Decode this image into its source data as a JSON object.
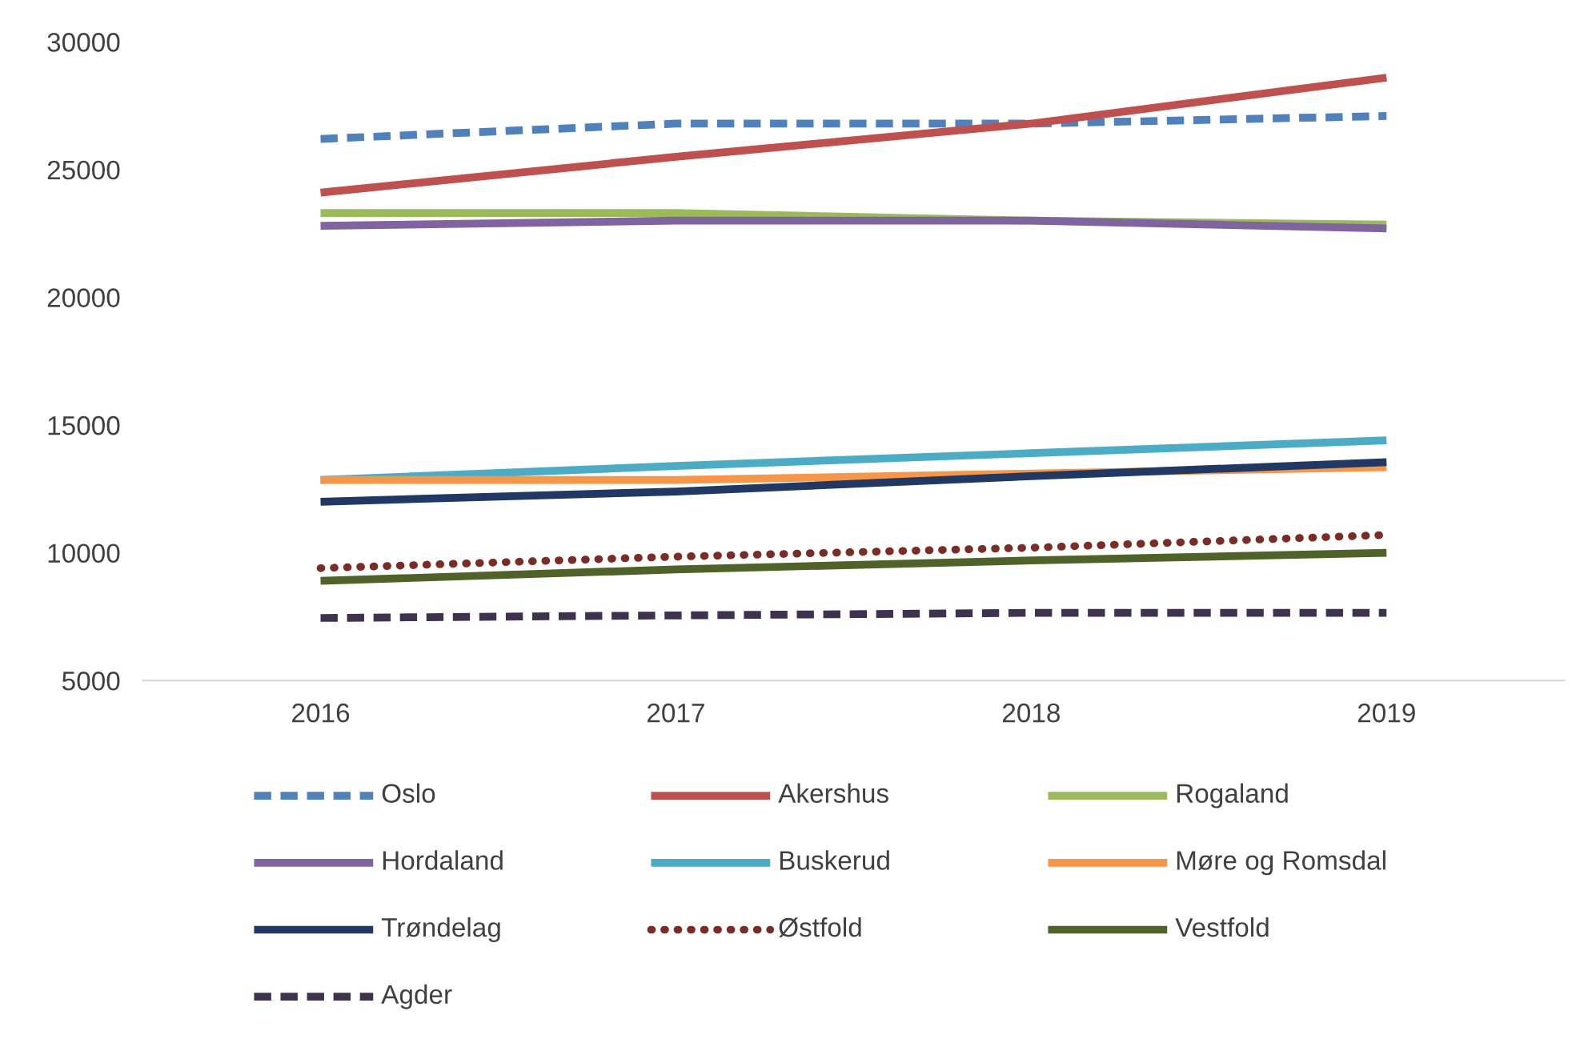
{
  "chart_data": {
    "type": "line",
    "categories": [
      "2016",
      "2017",
      "2018",
      "2019"
    ],
    "ylim": [
      5000,
      30000
    ],
    "yticks": [
      5000,
      10000,
      15000,
      20000,
      25000,
      30000
    ],
    "grid": false,
    "legend": "bottom",
    "series": [
      {
        "name": "Oslo",
        "color": "#4f81bd",
        "line_style": "dashed",
        "values": [
          26200,
          26800,
          26800,
          27100
        ]
      },
      {
        "name": "Akershus",
        "color": "#c0504d",
        "line_style": "solid",
        "values": [
          24100,
          25500,
          26800,
          28600
        ]
      },
      {
        "name": "Rogaland",
        "color": "#9bbb59",
        "line_style": "solid",
        "values": [
          23300,
          23300,
          23000,
          22850
        ]
      },
      {
        "name": "Hordaland",
        "color": "#8064a2",
        "line_style": "solid",
        "values": [
          22800,
          23000,
          23000,
          22700
        ]
      },
      {
        "name": "Buskerud",
        "color": "#4bacc6",
        "line_style": "solid",
        "values": [
          12850,
          13400,
          13900,
          14400
        ]
      },
      {
        "name": "Møre og Romsdal",
        "color": "#f79646",
        "line_style": "solid",
        "values": [
          12850,
          12850,
          13100,
          13350
        ]
      },
      {
        "name": "Trøndelag",
        "color": "#1f3864",
        "line_style": "solid",
        "values": [
          12000,
          12400,
          13000,
          13550
        ]
      },
      {
        "name": "Østfold",
        "color": "#7b2c24",
        "line_style": "dotted",
        "values": [
          9400,
          9850,
          10200,
          10700
        ]
      },
      {
        "name": "Vestfold",
        "color": "#4f6228",
        "line_style": "solid",
        "values": [
          8900,
          9350,
          9700,
          10000
        ]
      },
      {
        "name": "Agder",
        "color": "#403151",
        "line_style": "dashed",
        "values": [
          7450,
          7550,
          7650,
          7650
        ]
      }
    ]
  }
}
